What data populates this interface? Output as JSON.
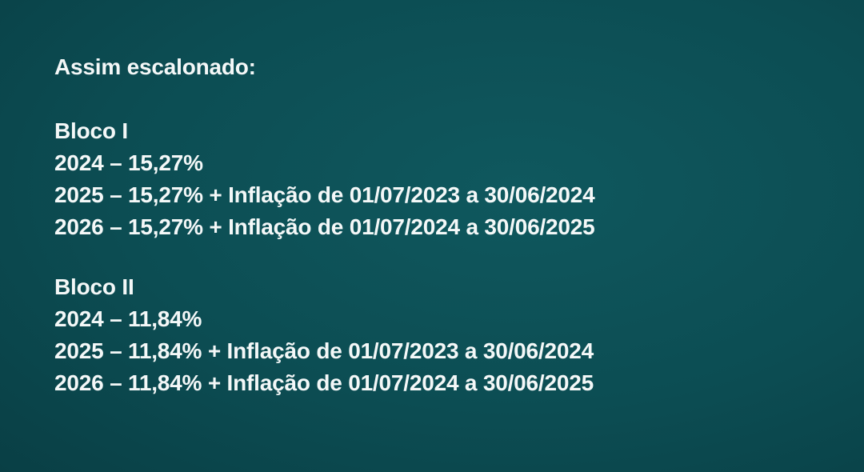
{
  "colors": {
    "background": "#0c4d53",
    "text": "#f4f8f8"
  },
  "heading": "Assim escalonado:",
  "blocks": [
    {
      "title": "Bloco I",
      "lines": [
        "2024 – 15,27%",
        "2025 – 15,27% + Inflação de 01/07/2023 a 30/06/2024",
        "2026 – 15,27% + Inflação de 01/07/2024 a 30/06/2025"
      ]
    },
    {
      "title": "Bloco II",
      "lines": [
        "2024 – 11,84%",
        "2025 – 11,84% + Inflação de 01/07/2023 a 30/06/2024",
        "2026 – 11,84% + Inflação de 01/07/2024 a 30/06/2025"
      ]
    }
  ]
}
